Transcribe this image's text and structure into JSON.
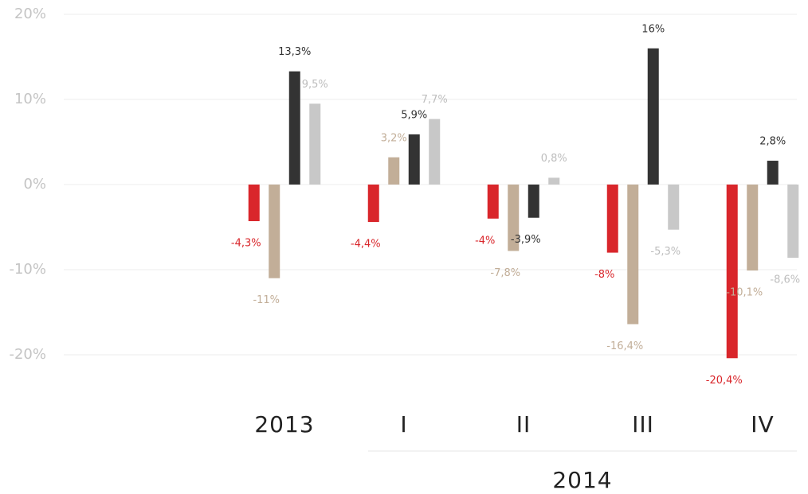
{
  "chart_data": {
    "type": "bar",
    "categories": [
      "2013",
      "I",
      "II",
      "III",
      "IV"
    ],
    "group_label": "2014",
    "series": [
      {
        "color": "#d9262b",
        "values": [
          -4.3,
          -4.4,
          -4,
          -8,
          -20.4
        ],
        "value_labels": [
          "-4,3%",
          "-4,4%",
          "-4%",
          "-8%",
          "-20,4%"
        ]
      },
      {
        "color": "#c2ae98",
        "values": [
          -11,
          3.2,
          -7.8,
          -16.4,
          -10.1
        ],
        "value_labels": [
          "-11%",
          "3,2%",
          "-7,8%",
          "-16,4%",
          "-10,1%"
        ]
      },
      {
        "color": "#333333",
        "values": [
          13.3,
          5.9,
          -3.9,
          16,
          2.8
        ],
        "value_labels": [
          "13,3%",
          "5,9%",
          "-3,9%",
          "16%",
          "2,8%"
        ]
      },
      {
        "color": "#c8c8c8",
        "values": [
          9.5,
          7.7,
          0.8,
          -5.3,
          -8.6
        ],
        "value_labels": [
          "9,5%",
          "7,7%",
          "0,8%",
          "-5,3%",
          "-8,6%"
        ]
      }
    ],
    "ylim": [
      -20,
      20
    ],
    "yticks": [
      {
        "value": 20,
        "label": "20%"
      },
      {
        "value": 10,
        "label": "10%"
      },
      {
        "value": 0,
        "label": "0%"
      },
      {
        "value": -10,
        "label": "-10%"
      },
      {
        "value": -20,
        "label": "-20%"
      }
    ],
    "grid": true
  }
}
